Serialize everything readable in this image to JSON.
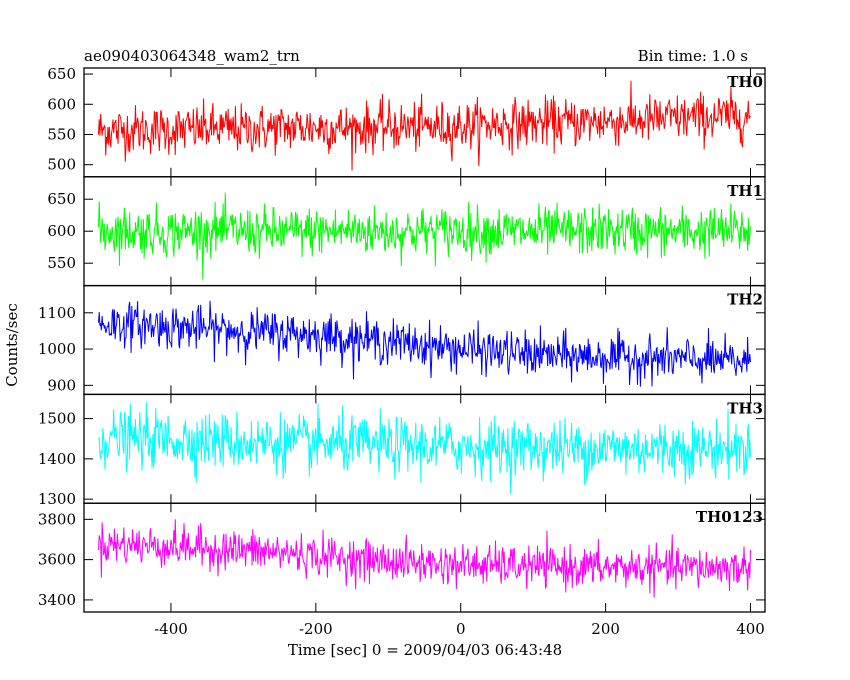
{
  "header": {
    "title": "ae090403064348_wam2_trn",
    "bin_time": "Bin time: 1.0 s"
  },
  "chart_data": {
    "type": "line",
    "title": "ae090403064348_wam2_trn",
    "subtitle": "Bin time: 1.0 s",
    "xlabel": "Time [sec] 0 = 2009/04/03 06:43:48",
    "ylabel": "Counts/sec",
    "xlim": [
      -520,
      420
    ],
    "x_ticks": [
      -400,
      -200,
      0,
      200,
      400
    ],
    "x_range_data": [
      -500,
      400
    ],
    "bin_time_s": 1.0,
    "grid": false,
    "panels": [
      {
        "name": "TH0",
        "color": "#ff0000",
        "ylim": [
          480,
          660
        ],
        "y_ticks": [
          500,
          550,
          600,
          650
        ],
        "mean_start": 555,
        "mean_end": 580,
        "spread": 40,
        "x": [
          -500,
          -450,
          -400,
          -350,
          -300,
          -250,
          -200,
          -150,
          -100,
          -50,
          0,
          50,
          100,
          150,
          200,
          250,
          300,
          350,
          400
        ],
        "values": [
          556,
          558,
          557,
          560,
          558,
          561,
          562,
          560,
          563,
          562,
          564,
          567,
          569,
          570,
          572,
          574,
          577,
          579,
          580
        ]
      },
      {
        "name": "TH1",
        "color": "#00ff00",
        "ylim": [
          515,
          685
        ],
        "y_ticks": [
          550,
          600,
          650
        ],
        "mean_start": 600,
        "mean_end": 600,
        "spread": 38,
        "x": [
          -500,
          -450,
          -400,
          -350,
          -300,
          -250,
          -200,
          -150,
          -100,
          -50,
          0,
          50,
          100,
          150,
          200,
          250,
          300,
          350,
          400
        ],
        "values": [
          601,
          600,
          599,
          601,
          600,
          598,
          600,
          601,
          599,
          600,
          601,
          600,
          599,
          600,
          601,
          600,
          599,
          600,
          600
        ]
      },
      {
        "name": "TH2",
        "color": "#0000ff",
        "ylim": [
          875,
          1175
        ],
        "y_ticks": [
          900,
          1000,
          1100
        ],
        "mean_start": 1070,
        "mean_end": 965,
        "spread": 60,
        "x": [
          -500,
          -450,
          -400,
          -350,
          -300,
          -250,
          -200,
          -150,
          -100,
          -50,
          0,
          50,
          100,
          150,
          200,
          250,
          300,
          350,
          400
        ],
        "values": [
          1070,
          1068,
          1062,
          1055,
          1050,
          1045,
          1040,
          1030,
          1020,
          1010,
          1000,
          992,
          985,
          980,
          978,
          975,
          972,
          968,
          965
        ]
      },
      {
        "name": "TH3",
        "color": "#00ffff",
        "ylim": [
          1290,
          1560
        ],
        "y_ticks": [
          1300,
          1400,
          1500
        ],
        "mean_start": 1450,
        "mean_end": 1425,
        "spread": 70,
        "x": [
          -500,
          -450,
          -400,
          -350,
          -300,
          -250,
          -200,
          -150,
          -100,
          -50,
          0,
          50,
          100,
          150,
          200,
          250,
          300,
          350,
          400
        ],
        "values": [
          1452,
          1450,
          1448,
          1446,
          1442,
          1440,
          1437,
          1435,
          1433,
          1431,
          1430,
          1429,
          1428,
          1427,
          1427,
          1426,
          1426,
          1425,
          1425
        ]
      },
      {
        "name": "TH0123",
        "color": "#ff00ff",
        "ylim": [
          3340,
          3880
        ],
        "y_ticks": [
          3400,
          3600,
          3800
        ],
        "mean_start": 3680,
        "mean_end": 3560,
        "spread": 100,
        "x": [
          -500,
          -450,
          -400,
          -350,
          -300,
          -250,
          -200,
          -150,
          -100,
          -50,
          0,
          50,
          100,
          150,
          200,
          250,
          300,
          350,
          400
        ],
        "values": [
          3680,
          3672,
          3665,
          3655,
          3645,
          3635,
          3620,
          3605,
          3592,
          3582,
          3575,
          3570,
          3566,
          3563,
          3561,
          3560,
          3560,
          3560,
          3560
        ]
      }
    ]
  }
}
